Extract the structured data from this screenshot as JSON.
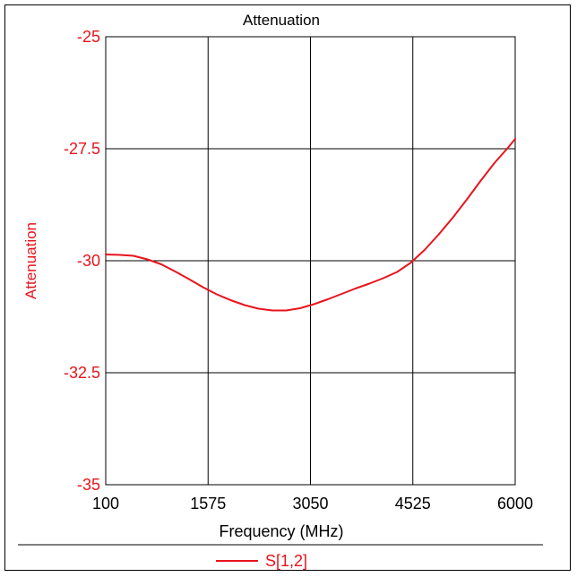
{
  "chart_data": {
    "type": "line",
    "title": "Attenuation",
    "xlabel": "Frequency (MHz)",
    "ylabel": "Attenuation",
    "xlim": [
      100,
      6000
    ],
    "ylim": [
      -35,
      -25
    ],
    "x_ticks": [
      100,
      1575,
      3050,
      4525,
      6000
    ],
    "y_ticks": [
      -25,
      -27.5,
      -30,
      -32.5,
      -35
    ],
    "x_tick_labels": [
      "100",
      "1575",
      "3050",
      "4525",
      "6000"
    ],
    "y_tick_labels": [
      "-25",
      "-27.5",
      "-30",
      "-32.5",
      "-35"
    ],
    "grid": true,
    "legend_position": "bottom-center",
    "series": [
      {
        "name": "S[1,2]",
        "color": "#e8141c",
        "x": [
          100,
          300,
          500,
          700,
          900,
          1100,
          1300,
          1500,
          1700,
          1900,
          2100,
          2300,
          2500,
          2700,
          2900,
          3100,
          3300,
          3500,
          3700,
          3900,
          4100,
          4300,
          4500,
          4700,
          4900,
          5100,
          5300,
          5500,
          5700,
          5900,
          6000
        ],
        "y": [
          -29.86,
          -29.87,
          -29.89,
          -29.97,
          -30.08,
          -30.24,
          -30.41,
          -30.59,
          -30.75,
          -30.88,
          -30.99,
          -31.07,
          -31.11,
          -31.11,
          -31.06,
          -30.97,
          -30.86,
          -30.74,
          -30.62,
          -30.51,
          -30.39,
          -30.25,
          -30.04,
          -29.75,
          -29.41,
          -29.04,
          -28.64,
          -28.22,
          -27.82,
          -27.47,
          -27.28
        ]
      }
    ]
  },
  "colors": {
    "tick_label": "#e8141c",
    "axis_label": "#e8141c",
    "title": "#000000",
    "grid": "#000000"
  }
}
